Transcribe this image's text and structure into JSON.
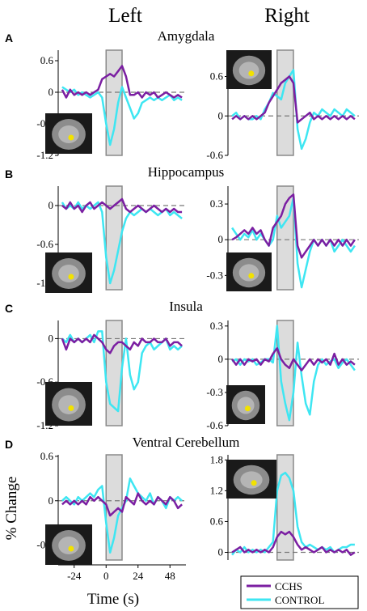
{
  "figure": {
    "left_title": "Left",
    "right_title": "Right",
    "ylabel": "% Change",
    "xlabel": "Time (s)",
    "legend": [
      "CCHS",
      "CONTROL"
    ],
    "colors": {
      "CCHS": "#7b1fa2",
      "CONTROL": "#3ee6f2"
    }
  },
  "chart_data": [
    {
      "type": "line",
      "row": 0,
      "panel": "A",
      "region": "Amygdala",
      "side": "left",
      "x_ticks": [],
      "xlim": [
        -36,
        60
      ],
      "ylim": [
        -1.2,
        0.8
      ],
      "y_ticks": [
        0.6,
        0,
        -0.6,
        -1.2
      ],
      "y_tick_labels": [
        "0.6",
        "0",
        "-0.6",
        "-1.2"
      ],
      "stim": [
        0,
        12
      ],
      "x": [
        -33,
        -30,
        -27,
        -24,
        -21,
        -18,
        -15,
        -12,
        -9,
        -6,
        -3,
        0,
        3,
        6,
        9,
        12,
        15,
        18,
        21,
        24,
        27,
        30,
        33,
        36,
        39,
        42,
        45,
        48,
        51,
        54,
        57
      ],
      "series": [
        {
          "name": "CCHS",
          "values": [
            0.05,
            -0.1,
            0.05,
            -0.05,
            0.0,
            -0.05,
            0.0,
            -0.05,
            0.0,
            0.05,
            0.25,
            0.3,
            0.35,
            0.3,
            0.4,
            0.5,
            0.3,
            -0.05,
            -0.05,
            0.0,
            -0.1,
            0.0,
            -0.05,
            0.0,
            -0.1,
            -0.05,
            0.0,
            -0.05,
            -0.1,
            -0.05,
            -0.1
          ]
        },
        {
          "name": "CONTROL",
          "values": [
            0.1,
            0.05,
            0.0,
            0.05,
            -0.05,
            0.0,
            -0.05,
            -0.1,
            -0.05,
            0.0,
            -0.1,
            -0.6,
            -1.0,
            -0.7,
            -0.2,
            0.1,
            -0.1,
            -0.3,
            -0.5,
            -0.4,
            -0.2,
            -0.15,
            -0.1,
            -0.15,
            -0.1,
            -0.15,
            -0.1,
            -0.05,
            -0.15,
            -0.1,
            -0.15
          ]
        }
      ]
    },
    {
      "type": "line",
      "row": 0,
      "panel": "",
      "region": "",
      "side": "right",
      "x_ticks": [],
      "xlim": [
        -36,
        60
      ],
      "ylim": [
        -0.6,
        1.0
      ],
      "y_ticks": [
        0.6,
        0,
        -0.6
      ],
      "y_tick_labels": [
        "0.6",
        "0",
        "-0.6"
      ],
      "stim": [
        0,
        12
      ],
      "x": [
        -33,
        -30,
        -27,
        -24,
        -21,
        -18,
        -15,
        -12,
        -9,
        -6,
        -3,
        0,
        3,
        6,
        9,
        12,
        15,
        18,
        21,
        24,
        27,
        30,
        33,
        36,
        39,
        42,
        45,
        48,
        51,
        54,
        57
      ],
      "series": [
        {
          "name": "CCHS",
          "values": [
            -0.05,
            0.0,
            -0.05,
            0.0,
            -0.05,
            0.0,
            -0.05,
            0.0,
            0.05,
            0.2,
            0.3,
            0.4,
            0.5,
            0.55,
            0.6,
            0.5,
            -0.1,
            -0.05,
            0.0,
            0.05,
            -0.05,
            0.0,
            -0.05,
            0.0,
            -0.05,
            0.0,
            -0.05,
            0.0,
            -0.05,
            0.0,
            -0.05
          ]
        },
        {
          "name": "CONTROL",
          "values": [
            0.0,
            0.05,
            -0.05,
            0.0,
            -0.05,
            -0.05,
            0.0,
            -0.05,
            0.1,
            0.2,
            0.35,
            0.3,
            0.25,
            0.5,
            0.6,
            0.7,
            -0.2,
            -0.5,
            -0.35,
            -0.1,
            0.05,
            0.0,
            0.1,
            0.05,
            0.0,
            0.1,
            0.05,
            0.0,
            0.1,
            0.05,
            0.0
          ]
        }
      ]
    },
    {
      "type": "line",
      "row": 1,
      "panel": "B",
      "region": "Hippocampus",
      "side": "left",
      "x_ticks": [],
      "xlim": [
        -36,
        60
      ],
      "ylim": [
        -1.3,
        0.3
      ],
      "y_ticks": [
        0,
        -0.6,
        -1.2
      ],
      "y_tick_labels": [
        "0",
        "-0.6",
        "-1.2"
      ],
      "stim": [
        0,
        12
      ],
      "x": [
        -33,
        -30,
        -27,
        -24,
        -21,
        -18,
        -15,
        -12,
        -9,
        -6,
        -3,
        0,
        3,
        6,
        9,
        12,
        15,
        18,
        21,
        24,
        27,
        30,
        33,
        36,
        39,
        42,
        45,
        48,
        51,
        54,
        57
      ],
      "series": [
        {
          "name": "CCHS",
          "values": [
            0.0,
            -0.05,
            0.05,
            -0.05,
            0.0,
            -0.1,
            0.0,
            0.05,
            -0.05,
            0.0,
            0.05,
            0.0,
            -0.05,
            0.0,
            0.05,
            0.1,
            -0.05,
            -0.1,
            -0.05,
            0.0,
            -0.05,
            -0.1,
            -0.05,
            0.0,
            -0.05,
            -0.1,
            -0.05,
            -0.1,
            -0.05,
            -0.1,
            -0.1
          ]
        },
        {
          "name": "CONTROL",
          "values": [
            0.05,
            -0.05,
            0.0,
            -0.05,
            0.05,
            -0.05,
            0.0,
            -0.05,
            0.0,
            0.05,
            -0.1,
            -0.8,
            -1.2,
            -1.0,
            -0.7,
            -0.4,
            -0.2,
            -0.1,
            -0.15,
            -0.1,
            -0.05,
            -0.1,
            -0.05,
            -0.1,
            -0.15,
            -0.1,
            -0.05,
            -0.15,
            -0.1,
            -0.15,
            -0.2
          ]
        }
      ]
    },
    {
      "type": "line",
      "row": 1,
      "panel": "",
      "region": "",
      "side": "right",
      "x_ticks": [],
      "xlim": [
        -36,
        60
      ],
      "ylim": [
        -0.42,
        0.45
      ],
      "y_ticks": [
        0.3,
        0,
        -0.3
      ],
      "y_tick_labels": [
        "0.3",
        "0",
        "-0.3"
      ],
      "stim": [
        0,
        12
      ],
      "x": [
        -33,
        -30,
        -27,
        -24,
        -21,
        -18,
        -15,
        -12,
        -9,
        -6,
        -3,
        0,
        3,
        6,
        9,
        12,
        15,
        18,
        21,
        24,
        27,
        30,
        33,
        36,
        39,
        42,
        45,
        48,
        51,
        54,
        57
      ],
      "series": [
        {
          "name": "CCHS",
          "values": [
            0.0,
            0.02,
            0.05,
            0.08,
            0.05,
            0.1,
            0.05,
            0.08,
            0.0,
            -0.05,
            0.1,
            0.15,
            0.2,
            0.3,
            0.35,
            0.38,
            -0.05,
            -0.15,
            -0.1,
            -0.05,
            0.0,
            -0.05,
            0.0,
            -0.05,
            0.0,
            -0.05,
            0.0,
            -0.05,
            0.0,
            -0.05,
            0.0
          ]
        },
        {
          "name": "CONTROL",
          "values": [
            0.1,
            0.05,
            0.0,
            0.05,
            0.02,
            0.08,
            0.0,
            0.05,
            0.0,
            -0.05,
            0.0,
            0.2,
            0.1,
            0.15,
            0.2,
            0.35,
            -0.2,
            -0.4,
            -0.25,
            -0.1,
            0.0,
            -0.05,
            0.0,
            -0.05,
            0.0,
            -0.1,
            -0.05,
            0.0,
            -0.05,
            -0.1,
            -0.05
          ]
        }
      ]
    },
    {
      "type": "line",
      "row": 2,
      "panel": "C",
      "region": "Insula",
      "side": "left",
      "x_ticks": [],
      "xlim": [
        -36,
        60
      ],
      "ylim": [
        -1.2,
        0.25
      ],
      "y_ticks": [
        0,
        -0.6,
        -1.2
      ],
      "y_tick_labels": [
        "0",
        "-0.6",
        "-1.2"
      ],
      "stim": [
        0,
        12
      ],
      "x": [
        -33,
        -30,
        -27,
        -24,
        -21,
        -18,
        -15,
        -12,
        -9,
        -6,
        -3,
        0,
        3,
        6,
        9,
        12,
        15,
        18,
        21,
        24,
        27,
        30,
        33,
        36,
        39,
        42,
        45,
        48,
        51,
        54,
        57
      ],
      "series": [
        {
          "name": "CCHS",
          "values": [
            0.0,
            -0.15,
            0.0,
            -0.05,
            0.0,
            -0.05,
            0.0,
            -0.05,
            0.05,
            0.0,
            -0.05,
            -0.15,
            -0.2,
            -0.1,
            -0.05,
            -0.05,
            -0.1,
            -0.15,
            -0.05,
            -0.1,
            0.0,
            -0.05,
            -0.05,
            0.0,
            -0.05,
            -0.05,
            0.0,
            -0.1,
            -0.05,
            -0.05,
            -0.1
          ]
        },
        {
          "name": "CONTROL",
          "values": [
            0.0,
            -0.05,
            0.05,
            -0.05,
            0.0,
            -0.05,
            0.0,
            0.05,
            -0.05,
            0.1,
            0.1,
            -0.6,
            -0.9,
            -0.95,
            -1.0,
            -0.4,
            0.0,
            -0.5,
            -0.7,
            -0.6,
            -0.2,
            -0.1,
            -0.05,
            -0.15,
            -0.1,
            -0.05,
            0.0,
            -0.15,
            -0.1,
            -0.15,
            -0.1
          ]
        }
      ]
    },
    {
      "type": "line",
      "row": 2,
      "panel": "",
      "region": "",
      "side": "right",
      "x_ticks": [],
      "xlim": [
        -36,
        60
      ],
      "ylim": [
        -0.6,
        0.35
      ],
      "y_ticks": [
        0.3,
        0,
        -0.3,
        -0.6
      ],
      "y_tick_labels": [
        "0.3",
        "0",
        "-0.3",
        "-0.6"
      ],
      "stim": [
        0,
        12
      ],
      "x": [
        -33,
        -30,
        -27,
        -24,
        -21,
        -18,
        -15,
        -12,
        -9,
        -6,
        -3,
        0,
        3,
        6,
        9,
        12,
        15,
        18,
        21,
        24,
        27,
        30,
        33,
        36,
        39,
        42,
        45,
        48,
        51,
        54,
        57
      ],
      "series": [
        {
          "name": "CCHS",
          "values": [
            0.0,
            -0.05,
            0.0,
            -0.05,
            0.0,
            -0.02,
            0.0,
            -0.05,
            0.0,
            -0.02,
            0.05,
            0.1,
            0.0,
            -0.05,
            -0.08,
            0.0,
            -0.05,
            -0.1,
            -0.05,
            0.0,
            -0.05,
            0.0,
            -0.03,
            0.0,
            -0.05,
            0.05,
            -0.05,
            0.0,
            -0.05,
            -0.02,
            -0.05
          ]
        },
        {
          "name": "CONTROL",
          "values": [
            -0.02,
            0.0,
            -0.05,
            0.0,
            -0.02,
            0.0,
            -0.05,
            -0.03,
            0.0,
            0.0,
            -0.03,
            0.3,
            -0.2,
            -0.4,
            -0.55,
            -0.3,
            0.15,
            -0.15,
            -0.4,
            -0.5,
            -0.2,
            -0.05,
            0.0,
            -0.05,
            -0.02,
            0.0,
            -0.08,
            -0.03,
            0.0,
            -0.05,
            -0.1
          ]
        }
      ]
    },
    {
      "type": "line",
      "row": 3,
      "panel": "D",
      "region": "Ventral Cerebellum",
      "side": "left",
      "x_ticks": [
        -24,
        0,
        24,
        48
      ],
      "x_tick_labels": [
        "-24",
        "0",
        "24",
        "48"
      ],
      "xlim": [
        -36,
        60
      ],
      "ylim": [
        -0.8,
        0.62
      ],
      "y_ticks": [
        0.6,
        0,
        -0.6
      ],
      "y_tick_labels": [
        "0.6",
        "0",
        "-0.6"
      ],
      "stim": [
        0,
        12
      ],
      "x": [
        -33,
        -30,
        -27,
        -24,
        -21,
        -18,
        -15,
        -12,
        -9,
        -6,
        -3,
        0,
        3,
        6,
        9,
        12,
        15,
        18,
        21,
        24,
        27,
        30,
        33,
        36,
        39,
        42,
        45,
        48,
        51,
        54,
        57
      ],
      "series": [
        {
          "name": "CCHS",
          "values": [
            -0.05,
            0.0,
            -0.05,
            0.0,
            -0.05,
            0.0,
            -0.05,
            0.05,
            0.0,
            0.05,
            0.0,
            -0.05,
            -0.2,
            -0.15,
            -0.1,
            -0.15,
            0.05,
            0.0,
            -0.05,
            0.1,
            0.0,
            -0.05,
            0.0,
            -0.05,
            0.05,
            0.0,
            -0.05,
            0.05,
            0.0,
            -0.1,
            -0.05
          ]
        },
        {
          "name": "CONTROL",
          "values": [
            0.0,
            0.05,
            0.0,
            -0.05,
            0.05,
            0.0,
            0.05,
            0.1,
            0.05,
            0.15,
            0.2,
            -0.3,
            -0.7,
            -0.5,
            -0.2,
            -0.1,
            0.0,
            0.3,
            0.2,
            0.1,
            0.05,
            0.0,
            0.1,
            -0.05,
            0.05,
            0.0,
            -0.1,
            0.05,
            0.0,
            0.05,
            0.0
          ]
        }
      ]
    },
    {
      "type": "line",
      "row": 3,
      "panel": "",
      "region": "",
      "side": "right",
      "x_ticks": [],
      "xlim": [
        -36,
        60
      ],
      "ylim": [
        -0.15,
        1.9
      ],
      "y_ticks": [
        1.8,
        1.2,
        0.6,
        0
      ],
      "y_tick_labels": [
        "1.8",
        "1.2",
        "0.6",
        "0"
      ],
      "stim": [
        0,
        12
      ],
      "x": [
        -33,
        -30,
        -27,
        -24,
        -21,
        -18,
        -15,
        -12,
        -9,
        -6,
        -3,
        0,
        3,
        6,
        9,
        12,
        15,
        18,
        21,
        24,
        27,
        30,
        33,
        36,
        39,
        42,
        45,
        48,
        51,
        54,
        57
      ],
      "series": [
        {
          "name": "CCHS",
          "values": [
            0.0,
            0.05,
            0.1,
            0.0,
            0.05,
            0.0,
            0.05,
            0.0,
            0.05,
            0.0,
            0.1,
            0.3,
            0.4,
            0.35,
            0.4,
            0.3,
            0.15,
            0.05,
            0.1,
            0.05,
            0.0,
            0.05,
            0.1,
            0.0,
            0.05,
            0.0,
            0.05,
            0.0,
            0.05,
            -0.05,
            0.0
          ]
        },
        {
          "name": "CONTROL",
          "values": [
            -0.05,
            0.05,
            0.0,
            0.1,
            0.0,
            0.05,
            0.0,
            0.05,
            0.0,
            0.1,
            0.2,
            1.2,
            1.5,
            1.55,
            1.45,
            1.2,
            0.5,
            0.2,
            0.1,
            0.15,
            0.1,
            0.05,
            0.1,
            0.05,
            0.1,
            0.0,
            0.05,
            0.1,
            0.1,
            0.15,
            0.15
          ]
        }
      ]
    }
  ]
}
